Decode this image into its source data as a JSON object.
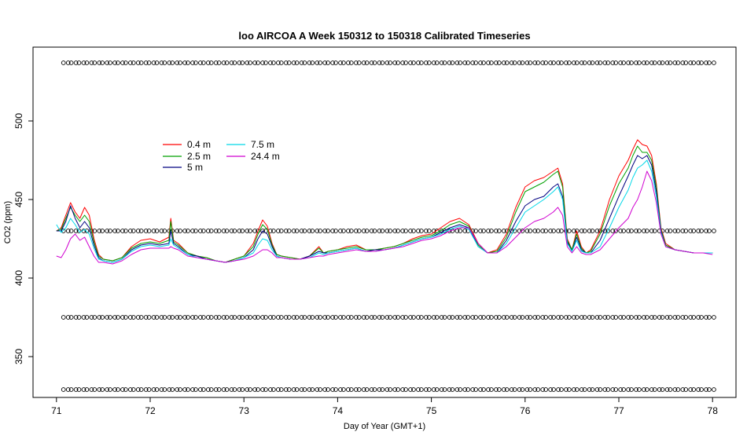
{
  "chart_data": {
    "type": "line",
    "title": "loo AIRCOA A  Week 150312 to 150318  Calibrated Timeseries",
    "xlabel": "Day of Year (GMT+1)",
    "ylabel": "CO2 (ppm)",
    "xlim": [
      70.75,
      78.25
    ],
    "ylim": [
      324,
      547
    ],
    "xticks": [
      71,
      72,
      73,
      74,
      75,
      76,
      77,
      78
    ],
    "yticks": [
      350,
      400,
      450,
      500
    ],
    "legend_position": "upper-left",
    "series": [
      {
        "name": "0.4 m",
        "color": "#ff0000",
        "x": [
          71.0,
          71.05,
          71.1,
          71.15,
          71.2,
          71.25,
          71.3,
          71.35,
          71.4,
          71.45,
          71.5,
          71.6,
          71.7,
          71.8,
          71.9,
          72.0,
          72.1,
          72.2,
          72.22,
          72.25,
          72.3,
          72.4,
          72.5,
          72.6,
          72.7,
          72.8,
          72.9,
          73.0,
          73.1,
          73.15,
          73.2,
          73.25,
          73.3,
          73.35,
          73.4,
          73.5,
          73.6,
          73.7,
          73.8,
          73.85,
          73.9,
          74.0,
          74.1,
          74.2,
          74.3,
          74.4,
          74.5,
          74.6,
          74.7,
          74.8,
          74.9,
          75.0,
          75.1,
          75.2,
          75.3,
          75.4,
          75.5,
          75.6,
          75.7,
          75.8,
          75.9,
          76.0,
          76.1,
          76.2,
          76.3,
          76.35,
          76.4,
          76.45,
          76.5,
          76.55,
          76.6,
          76.65,
          76.7,
          76.8,
          76.9,
          77.0,
          77.1,
          77.15,
          77.2,
          77.25,
          77.3,
          77.35,
          77.4,
          77.45,
          77.5,
          77.6,
          77.7,
          77.8,
          77.9,
          78.0
        ],
        "y": [
          430,
          432,
          440,
          448,
          442,
          438,
          445,
          440,
          425,
          415,
          412,
          411,
          413,
          420,
          424,
          425,
          423,
          426,
          438,
          424,
          422,
          416,
          414,
          413,
          411,
          410,
          412,
          414,
          422,
          430,
          437,
          433,
          422,
          415,
          414,
          413,
          412,
          414,
          420,
          416,
          417,
          418,
          420,
          421,
          418,
          418,
          419,
          420,
          422,
          425,
          427,
          428,
          432,
          436,
          438,
          434,
          422,
          416,
          418,
          428,
          445,
          458,
          462,
          464,
          468,
          470,
          460,
          425,
          418,
          430,
          420,
          416,
          418,
          430,
          450,
          465,
          475,
          482,
          488,
          485,
          484,
          478,
          460,
          432,
          422,
          418,
          417,
          416,
          416,
          416
        ]
      },
      {
        "name": "2.5 m",
        "color": "#00a000",
        "x": [
          71.0,
          71.05,
          71.1,
          71.15,
          71.2,
          71.25,
          71.3,
          71.35,
          71.4,
          71.45,
          71.5,
          71.6,
          71.7,
          71.8,
          71.9,
          72.0,
          72.1,
          72.2,
          72.22,
          72.25,
          72.3,
          72.4,
          72.5,
          72.6,
          72.7,
          72.8,
          72.9,
          73.0,
          73.1,
          73.15,
          73.2,
          73.25,
          73.3,
          73.35,
          73.4,
          73.5,
          73.6,
          73.7,
          73.8,
          73.85,
          73.9,
          74.0,
          74.1,
          74.2,
          74.3,
          74.4,
          74.5,
          74.6,
          74.7,
          74.8,
          74.9,
          75.0,
          75.1,
          75.2,
          75.3,
          75.4,
          75.5,
          75.6,
          75.7,
          75.8,
          75.9,
          76.0,
          76.1,
          76.2,
          76.3,
          76.35,
          76.4,
          76.45,
          76.5,
          76.55,
          76.6,
          76.65,
          76.7,
          76.8,
          76.9,
          77.0,
          77.1,
          77.15,
          77.2,
          77.25,
          77.3,
          77.35,
          77.4,
          77.45,
          77.5,
          77.6,
          77.7,
          77.8,
          77.9,
          78.0
        ],
        "y": [
          430,
          431,
          438,
          445,
          440,
          436,
          440,
          436,
          423,
          414,
          412,
          411,
          413,
          419,
          422,
          423,
          422,
          424,
          436,
          423,
          421,
          416,
          414,
          413,
          411,
          410,
          412,
          414,
          420,
          428,
          434,
          431,
          421,
          415,
          414,
          413,
          412,
          414,
          419,
          416,
          417,
          418,
          419,
          420,
          418,
          418,
          419,
          420,
          422,
          424,
          426,
          427,
          430,
          434,
          436,
          433,
          421,
          416,
          417,
          426,
          442,
          455,
          458,
          461,
          466,
          468,
          458,
          424,
          418,
          428,
          419,
          416,
          417,
          428,
          446,
          460,
          470,
          478,
          484,
          480,
          480,
          475,
          458,
          431,
          421,
          418,
          417,
          416,
          416,
          416
        ]
      },
      {
        "name": "5 m",
        "color": "#000080",
        "x": [
          71.0,
          71.05,
          71.1,
          71.15,
          71.2,
          71.25,
          71.3,
          71.35,
          71.4,
          71.45,
          71.5,
          71.6,
          71.7,
          71.8,
          71.9,
          72.0,
          72.1,
          72.2,
          72.22,
          72.25,
          72.3,
          72.4,
          72.5,
          72.6,
          72.7,
          72.8,
          72.9,
          73.0,
          73.1,
          73.15,
          73.2,
          73.25,
          73.3,
          73.35,
          73.4,
          73.5,
          73.6,
          73.7,
          73.8,
          73.85,
          73.9,
          74.0,
          74.1,
          74.2,
          74.3,
          74.4,
          74.5,
          74.6,
          74.7,
          74.8,
          74.9,
          75.0,
          75.1,
          75.2,
          75.3,
          75.4,
          75.5,
          75.6,
          75.7,
          75.8,
          75.9,
          76.0,
          76.1,
          76.2,
          76.3,
          76.35,
          76.4,
          76.45,
          76.5,
          76.55,
          76.6,
          76.65,
          76.7,
          76.8,
          76.9,
          77.0,
          77.1,
          77.15,
          77.2,
          77.25,
          77.3,
          77.35,
          77.4,
          77.45,
          77.5,
          77.6,
          77.7,
          77.8,
          77.9,
          78.0
        ],
        "y": [
          430,
          430,
          436,
          446,
          438,
          432,
          436,
          432,
          421,
          413,
          411,
          410,
          412,
          418,
          421,
          422,
          421,
          422,
          430,
          422,
          420,
          415,
          414,
          412,
          411,
          410,
          411,
          413,
          418,
          425,
          430,
          428,
          420,
          414,
          413,
          412,
          412,
          414,
          417,
          416,
          416,
          417,
          418,
          419,
          417,
          418,
          418,
          419,
          421,
          423,
          425,
          426,
          429,
          432,
          434,
          432,
          420,
          416,
          416,
          424,
          436,
          446,
          450,
          452,
          458,
          460,
          452,
          423,
          417,
          426,
          418,
          416,
          416,
          424,
          438,
          452,
          465,
          472,
          478,
          476,
          478,
          472,
          455,
          430,
          420,
          418,
          417,
          416,
          416,
          416
        ]
      },
      {
        "name": "7.5 m",
        "color": "#00d8e8",
        "x": [
          71.0,
          71.05,
          71.1,
          71.15,
          71.2,
          71.25,
          71.3,
          71.35,
          71.4,
          71.45,
          71.5,
          71.6,
          71.7,
          71.8,
          71.9,
          72.0,
          72.1,
          72.2,
          72.22,
          72.25,
          72.3,
          72.4,
          72.5,
          72.6,
          72.7,
          72.8,
          72.9,
          73.0,
          73.1,
          73.15,
          73.2,
          73.25,
          73.3,
          73.35,
          73.4,
          73.5,
          73.6,
          73.7,
          73.8,
          73.85,
          73.9,
          74.0,
          74.1,
          74.2,
          74.3,
          74.4,
          74.5,
          74.6,
          74.7,
          74.8,
          74.9,
          75.0,
          75.1,
          75.2,
          75.3,
          75.4,
          75.5,
          75.6,
          75.7,
          75.8,
          75.9,
          76.0,
          76.1,
          76.2,
          76.3,
          76.35,
          76.4,
          76.45,
          76.5,
          76.55,
          76.6,
          76.65,
          76.7,
          76.8,
          76.9,
          77.0,
          77.1,
          77.15,
          77.2,
          77.25,
          77.3,
          77.35,
          77.4,
          77.45,
          77.5,
          77.6,
          77.7,
          77.8,
          77.9,
          78.0
        ],
        "y": [
          434,
          429,
          432,
          438,
          434,
          429,
          431,
          428,
          419,
          412,
          411,
          410,
          412,
          417,
          420,
          421,
          420,
          421,
          425,
          421,
          419,
          415,
          413,
          412,
          411,
          410,
          411,
          413,
          416,
          421,
          425,
          424,
          418,
          414,
          413,
          412,
          412,
          413,
          416,
          415,
          416,
          417,
          418,
          419,
          417,
          417,
          418,
          419,
          421,
          423,
          425,
          426,
          428,
          431,
          433,
          431,
          420,
          416,
          416,
          422,
          432,
          442,
          446,
          450,
          455,
          458,
          450,
          422,
          417,
          424,
          417,
          416,
          416,
          420,
          432,
          445,
          456,
          464,
          470,
          472,
          475,
          468,
          452,
          429,
          420,
          418,
          417,
          416,
          416,
          416
        ]
      },
      {
        "name": "24.4 m",
        "color": "#d000d0",
        "x": [
          71.0,
          71.05,
          71.1,
          71.15,
          71.2,
          71.25,
          71.3,
          71.35,
          71.4,
          71.45,
          71.5,
          71.6,
          71.7,
          71.8,
          71.9,
          72.0,
          72.1,
          72.2,
          72.22,
          72.25,
          72.3,
          72.4,
          72.5,
          72.6,
          72.7,
          72.8,
          72.9,
          73.0,
          73.1,
          73.15,
          73.2,
          73.25,
          73.3,
          73.35,
          73.4,
          73.5,
          73.6,
          73.7,
          73.8,
          73.85,
          73.9,
          74.0,
          74.1,
          74.2,
          74.3,
          74.4,
          74.5,
          74.6,
          74.7,
          74.8,
          74.9,
          75.0,
          75.1,
          75.2,
          75.3,
          75.4,
          75.5,
          75.6,
          75.7,
          75.8,
          75.9,
          76.0,
          76.1,
          76.2,
          76.3,
          76.35,
          76.4,
          76.45,
          76.5,
          76.55,
          76.6,
          76.65,
          76.7,
          76.8,
          76.9,
          77.0,
          77.1,
          77.15,
          77.2,
          77.25,
          77.3,
          77.35,
          77.4,
          77.45,
          77.5,
          77.6,
          77.7,
          77.8,
          77.9,
          78.0
        ],
        "y": [
          414,
          413,
          418,
          425,
          428,
          424,
          426,
          420,
          414,
          410,
          410,
          409,
          411,
          415,
          418,
          419,
          419,
          419,
          420,
          419,
          418,
          414,
          413,
          412,
          411,
          410,
          411,
          412,
          414,
          416,
          418,
          418,
          416,
          413,
          413,
          412,
          412,
          413,
          414,
          414,
          415,
          416,
          417,
          418,
          417,
          417,
          418,
          419,
          420,
          422,
          424,
          425,
          427,
          430,
          432,
          432,
          422,
          416,
          416,
          420,
          426,
          432,
          436,
          438,
          442,
          445,
          440,
          420,
          416,
          420,
          416,
          415,
          415,
          418,
          425,
          432,
          438,
          445,
          450,
          458,
          468,
          462,
          448,
          428,
          420,
          418,
          417,
          416,
          416,
          415
        ]
      }
    ],
    "calibration_points": {
      "levels": [
        537,
        430,
        375,
        329
      ],
      "x_start": 71.1,
      "x_end": 78.0,
      "step": 0.083
    }
  }
}
